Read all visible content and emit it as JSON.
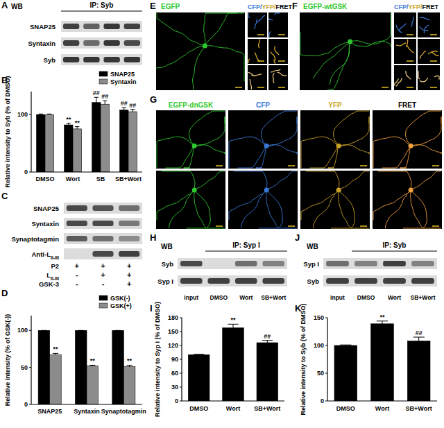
{
  "panel_labels": [
    "A",
    "B",
    "C",
    "D",
    "E",
    "F",
    "G",
    "H",
    "I",
    "J",
    "K"
  ],
  "blots": [
    {
      "header": "WB",
      "ip": "IP: Syb",
      "rows": [
        "SNAP25",
        "Syntaxin",
        "Syb"
      ]
    },
    {
      "rows": [
        "SNAP25",
        "Syntaxin",
        "Synaptotagmin",
        {
          "text": "Anti-L",
          "sub": "II-III"
        }
      ],
      "conditions": [
        {
          "name": "P2",
          "signs": [
            "+",
            "+",
            "+"
          ]
        },
        {
          "name": {
            "text": "L",
            "sub": "II-III"
          },
          "signs": [
            "-",
            "+",
            "+"
          ]
        },
        {
          "name": "GSK-3",
          "signs": [
            "-",
            "-",
            "+"
          ]
        }
      ]
    },
    {
      "header": "WB",
      "ip": "IP: Syp I",
      "rows": [
        "Syb",
        "Syp I"
      ],
      "lanes": [
        "input",
        "DMSO",
        "Wort",
        "SB+Wort"
      ]
    },
    {
      "header": "WB",
      "ip": "IP: Syb",
      "rows": [
        "Syp I",
        "Syb"
      ],
      "lanes": [
        "input",
        "DMSO",
        "Wort",
        "SB+Wort"
      ]
    }
  ],
  "images": [
    {
      "title": {
        "text": "EGFP",
        "color": "#2fc92f"
      },
      "header": [
        {
          "text": "CFP",
          "color": "#3a78d8"
        },
        {
          "text": "/",
          "color": "#3a78d8"
        },
        {
          "text": "YFP",
          "color": "#c9a227"
        },
        {
          "text": "/",
          "color": "#c9a227"
        },
        {
          "text": "FRET",
          "color": "#000000"
        }
      ]
    },
    {
      "title": {
        "text": "EGFP-wtGSK",
        "color": "#2fc92f"
      },
      "header": [
        {
          "text": "CFP",
          "color": "#3a78d8"
        },
        {
          "text": "/",
          "color": "#3a78d8"
        },
        {
          "text": "YFP",
          "color": "#c9a227"
        },
        {
          "text": "/",
          "color": "#c9a227"
        },
        {
          "text": "FRET",
          "color": "#000000"
        }
      ]
    },
    {
      "columns": [
        {
          "text": "EGFP-dnGSK",
          "color": "#2fc92f"
        },
        {
          "text": "CFP",
          "color": "#3a78d8"
        },
        {
          "text": "YFP",
          "color": "#c9a227"
        },
        {
          "text": "FRET",
          "color": "#000000"
        }
      ]
    }
  ],
  "chart_data": [
    {
      "type": "bar",
      "y_label": "Relative intensity to Syb (% of DMSO)",
      "categories": [
        "DMSO",
        "Wort",
        "SB",
        "SB+Wort"
      ],
      "series": [
        {
          "name": "SNAP25",
          "color": "#000000",
          "values": [
            100,
            82,
            121,
            108
          ],
          "errors": [
            1,
            3,
            9,
            4
          ],
          "annotations": [
            null,
            "**",
            "##",
            "##"
          ]
        },
        {
          "name": "Syntaxin",
          "color": "#8c8c8c",
          "values": [
            100,
            75,
            118,
            105
          ],
          "errors": [
            1,
            4,
            6,
            4
          ],
          "annotations": [
            null,
            "**",
            "##",
            "##"
          ]
        }
      ],
      "ylim": [
        0,
        140
      ],
      "yticks": [
        0,
        100
      ],
      "legend": "top-right"
    },
    {
      "type": "bar",
      "y_label": "Relative intensity (% of GSK(-))",
      "categories": [
        "SNAP25",
        "Syntaxin",
        "Synaptotagmin"
      ],
      "series": [
        {
          "name": "GSK(-)",
          "color": "#000000",
          "values": [
            100,
            100,
            100
          ],
          "errors": [
            0,
            0,
            0
          ],
          "annotations": [
            null,
            null,
            null
          ]
        },
        {
          "name": "GSK(+)",
          "color": "#8c8c8c",
          "values": [
            67,
            52,
            51
          ],
          "errors": [
            2,
            1,
            2
          ],
          "annotations": [
            "**",
            "**",
            "**"
          ]
        }
      ],
      "ylim": [
        0,
        120
      ],
      "yticks": [
        0,
        50,
        100
      ],
      "legend": "top-right"
    },
    {
      "type": "bar",
      "y_label": "Relative intensity to Syp I (% of DMSO)",
      "categories": [
        "DMSO",
        "Wort",
        "SB+Wort"
      ],
      "values": [
        100,
        158,
        126
      ],
      "errors": [
        1,
        8,
        5
      ],
      "annotations": [
        null,
        "**",
        "##"
      ],
      "color": "#000000",
      "ylim": [
        0,
        180
      ],
      "yticks": [
        0,
        30,
        60,
        90,
        120,
        150,
        180
      ]
    },
    {
      "type": "bar",
      "y_label": "Relative intensity to Syb (% of DMSO)",
      "categories": [
        "DMSO",
        "Wort",
        "SB+Wort"
      ],
      "values": [
        100,
        139,
        108
      ],
      "errors": [
        1,
        5,
        7
      ],
      "annotations": [
        null,
        "**",
        "##"
      ],
      "color": "#000000",
      "ylim": [
        0,
        150
      ],
      "yticks": [
        0,
        50,
        100,
        150
      ]
    }
  ]
}
